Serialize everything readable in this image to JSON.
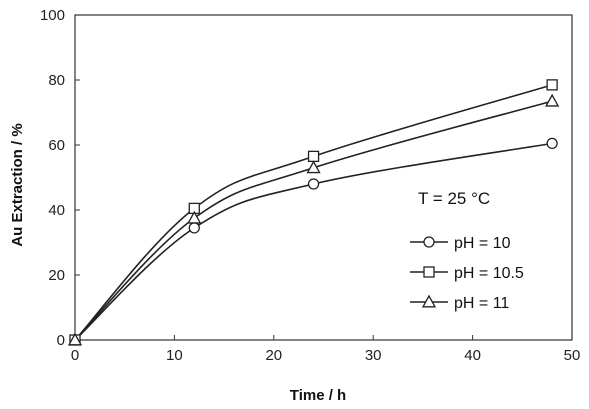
{
  "chart_data": {
    "type": "line",
    "title": "",
    "xlabel": "Time / h",
    "ylabel": "Au Extraction / %",
    "xlim": [
      0,
      50
    ],
    "ylim": [
      0,
      100
    ],
    "xticks": [
      "0",
      "10",
      "20",
      "30",
      "40",
      "50"
    ],
    "yticks": [
      "0",
      "20",
      "40",
      "60",
      "80",
      "100"
    ],
    "grid": false,
    "legend_position": "right",
    "annotation": "T = 25 °C",
    "series": [
      {
        "name": "pH = 10",
        "marker": "circle",
        "x": [
          0,
          12,
          24,
          48
        ],
        "y": [
          0,
          34.5,
          48,
          60.5
        ]
      },
      {
        "name": "pH = 10.5",
        "marker": "square",
        "x": [
          0,
          12,
          24,
          48
        ],
        "y": [
          0,
          40.5,
          56.5,
          78.5
        ]
      },
      {
        "name": "pH = 11",
        "marker": "triangle",
        "x": [
          0,
          12,
          24,
          48
        ],
        "y": [
          0,
          37.5,
          53,
          73.5
        ]
      }
    ]
  }
}
